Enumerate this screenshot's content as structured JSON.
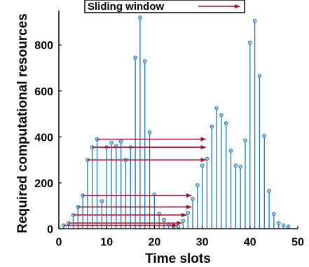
{
  "chart_data": {
    "type": "stem",
    "xlabel": "Time slots",
    "ylabel": "Required computational resources",
    "xlim": [
      0,
      50
    ],
    "ylim": [
      0,
      950
    ],
    "xticks": [
      "0",
      "10",
      "20",
      "30",
      "40",
      "50"
    ],
    "yticks": [
      "0",
      "200",
      "400",
      "600",
      "800"
    ],
    "x": [
      1,
      2,
      3,
      4,
      5,
      6,
      7,
      8,
      9,
      10,
      11,
      12,
      13,
      14,
      15,
      16,
      17,
      18,
      19,
      20,
      21,
      22,
      23,
      24,
      25,
      26,
      27,
      28,
      29,
      30,
      31,
      32,
      33,
      34,
      35,
      36,
      37,
      38,
      39,
      40,
      41,
      42,
      43,
      44,
      45,
      46,
      47,
      48
    ],
    "values": [
      15,
      25,
      60,
      95,
      145,
      300,
      355,
      390,
      120,
      355,
      375,
      360,
      380,
      300,
      355,
      745,
      920,
      730,
      420,
      150,
      65,
      40,
      20,
      10,
      10,
      35,
      70,
      130,
      190,
      275,
      305,
      445,
      525,
      495,
      460,
      340,
      275,
      270,
      385,
      810,
      905,
      665,
      405,
      165,
      65,
      25,
      15,
      10
    ],
    "annotation_arrows": [
      {
        "from": [
          8,
          390
        ],
        "to": [
          31,
          390
        ]
      },
      {
        "from": [
          7,
          355
        ],
        "to": [
          31,
          355
        ]
      },
      {
        "from": [
          6,
          300
        ],
        "to": [
          31,
          300
        ]
      },
      {
        "from": [
          5,
          145
        ],
        "to": [
          28,
          145
        ]
      },
      {
        "from": [
          4,
          95
        ],
        "to": [
          28,
          95
        ]
      },
      {
        "from": [
          3,
          60
        ],
        "to": [
          27,
          60
        ]
      },
      {
        "from": [
          2,
          25
        ],
        "to": [
          26,
          25
        ]
      },
      {
        "from": [
          1,
          15
        ],
        "to": [
          25,
          15
        ]
      }
    ],
    "legend": {
      "label": "Sliding window",
      "position": "top-center",
      "marker": "arrow"
    },
    "colors": {
      "stem": "#1f78b4",
      "marker": "#1f78b4",
      "arrow": "#a0142d"
    },
    "grid": false
  }
}
